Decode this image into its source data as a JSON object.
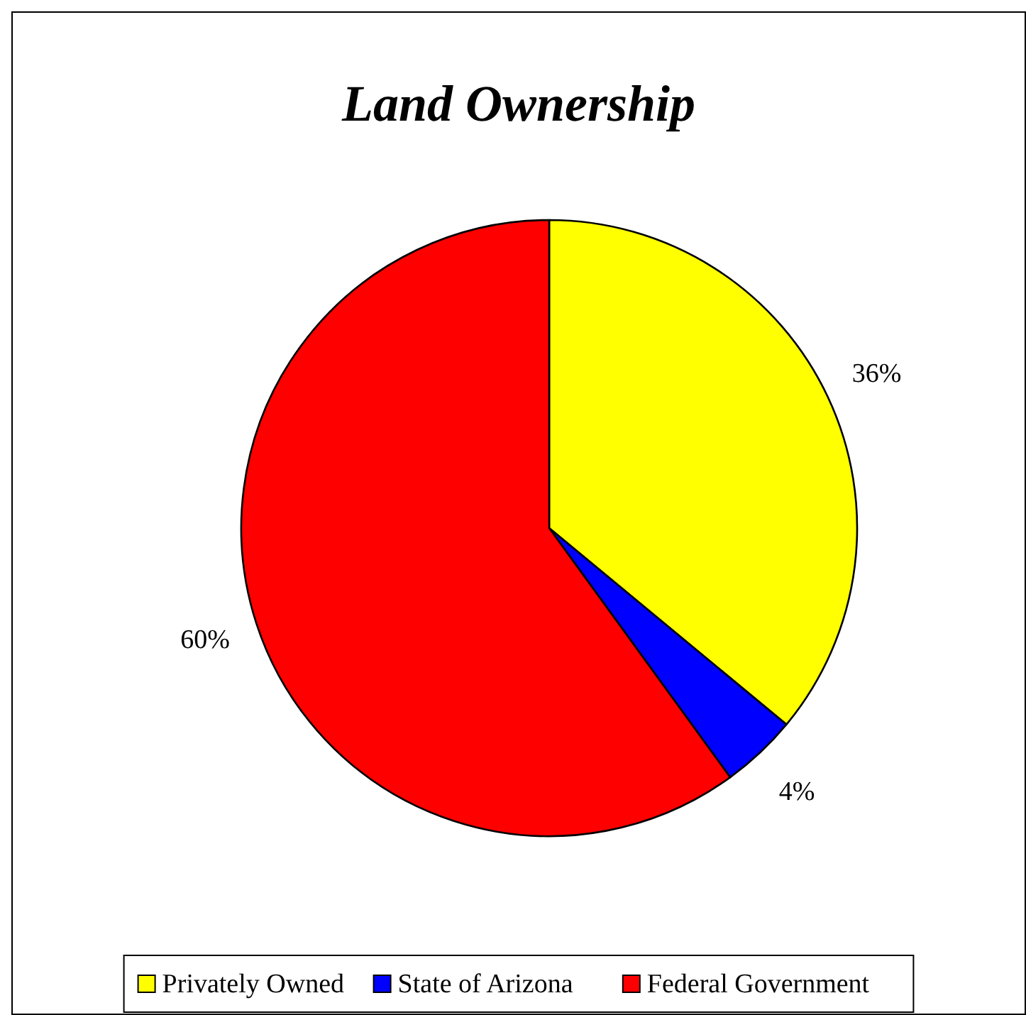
{
  "chart_data": {
    "type": "pie",
    "title": "Land Ownership",
    "categories": [
      "Privately Owned",
      "State of Arizona",
      "Federal Government"
    ],
    "values": [
      36,
      4,
      60
    ],
    "colors": [
      "#ffff00",
      "#0000ff",
      "#ff0000"
    ],
    "value_labels": [
      "36%",
      "4%",
      "60%"
    ],
    "legend": "bottom"
  }
}
